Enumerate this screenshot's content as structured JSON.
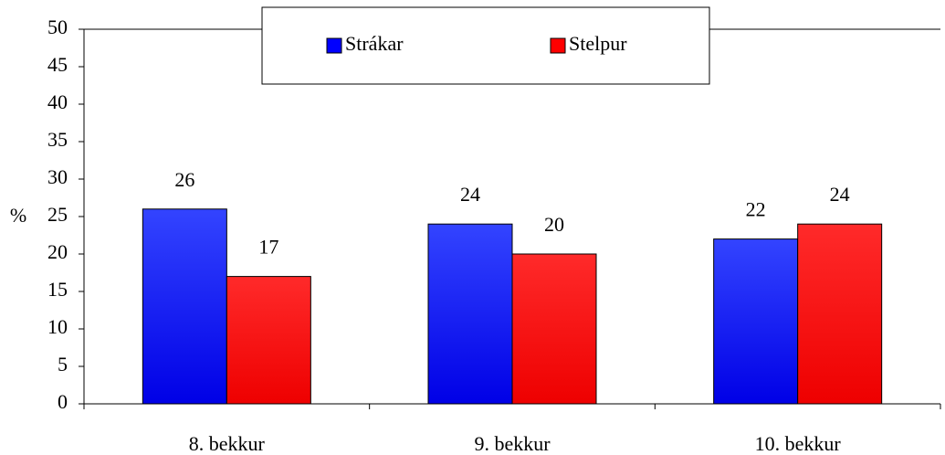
{
  "chart_data": {
    "type": "bar",
    "categories": [
      "8. bekkur",
      "9. bekkur",
      "10. bekkur"
    ],
    "series": [
      {
        "name": "Strákar",
        "color": "#0000ff",
        "values": [
          26,
          24,
          22
        ]
      },
      {
        "name": "Stelpur",
        "color": "#ff0000",
        "values": [
          17,
          20,
          24
        ]
      }
    ],
    "y_label": "%",
    "ylim": [
      0,
      50
    ],
    "yticks": [
      0,
      5,
      10,
      15,
      20,
      25,
      30,
      35,
      40,
      45,
      50
    ],
    "legend": "top"
  }
}
